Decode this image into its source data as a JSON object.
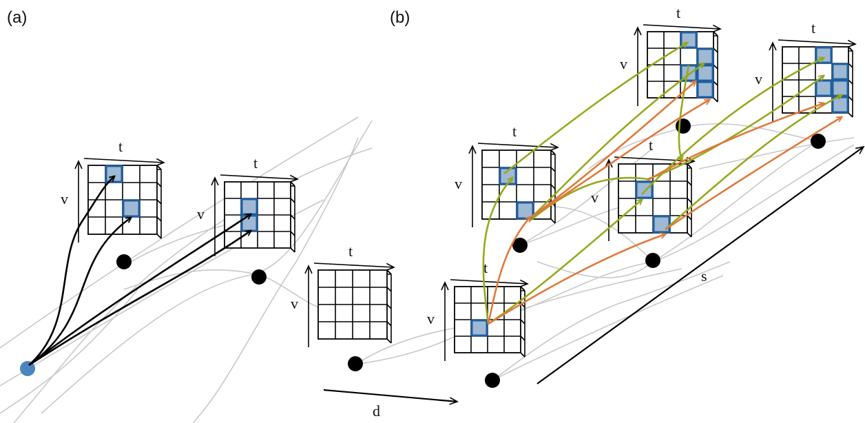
{
  "panels": [
    {
      "label": "(a)"
    },
    {
      "label": "(b)"
    }
  ],
  "axis_labels": {
    "time": "t",
    "vertical": "v",
    "depth": "d",
    "sequence": "s"
  },
  "colors": {
    "background_line": "#c8c8c8",
    "grid": "#000000",
    "highlight_fill": "#9fb9d4",
    "highlight_stroke": "#1f5fa0",
    "source_node": "#4a86bd",
    "node": "#000000",
    "arrow_black": "#000000",
    "arrow_green": "#96a81a",
    "arrow_orange": "#e0793a"
  }
}
